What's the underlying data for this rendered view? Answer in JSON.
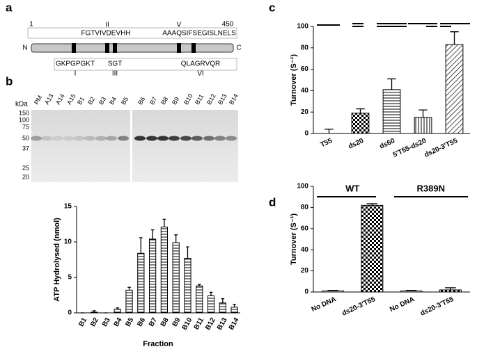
{
  "panels": [
    "a",
    "b",
    "c",
    "d"
  ],
  "domain_diagram": {
    "start": 1,
    "end": 450,
    "n_term": "N",
    "c_term": "C",
    "motifs_above": [
      {
        "numeral": "II",
        "sequence": "FGTVIVDEVHH"
      },
      {
        "numeral": "V",
        "sequence": "AAAQSIFSEGISLNELS"
      }
    ],
    "motifs_below": [
      {
        "numeral": "I",
        "sequence": "GKPGPGKT"
      },
      {
        "numeral": "III",
        "sequence": "SGT"
      },
      {
        "numeral": "VI",
        "sequence": "QLAGRVQR"
      }
    ]
  },
  "gel": {
    "unit": "kDa",
    "lanes": [
      "PM",
      "A13",
      "A14",
      "A15",
      "B1",
      "B2",
      "B3",
      "B4",
      "B5",
      "B6",
      "B7",
      "B8",
      "B9",
      "B10",
      "B11",
      "B12",
      "B13",
      "B14"
    ],
    "markers": [
      150,
      100,
      75,
      50,
      37,
      25,
      20
    ]
  },
  "chart_data": [
    {
      "type": "bar",
      "ylabel": "ATP Hydrolysed (nmol)",
      "xlabel": "Fraction",
      "categories": [
        "B1",
        "B2",
        "B3",
        "B4",
        "B5",
        "B6",
        "B7",
        "B8",
        "B9",
        "B10",
        "B11",
        "B12",
        "B13",
        "B14"
      ],
      "values": [
        0,
        0.1,
        0,
        0.5,
        3.2,
        8.4,
        10.4,
        12.1,
        9.9,
        7.7,
        3.8,
        2.4,
        1.4,
        0.8
      ],
      "errors": [
        0,
        0.2,
        0,
        0.2,
        0.4,
        2.2,
        1.3,
        1.1,
        1.1,
        1.6,
        0.2,
        0.5,
        0.6,
        0.4
      ],
      "patterns": [
        "hlines",
        "hlines",
        "hlines",
        "hlines",
        "hlines",
        "hlines",
        "hlines",
        "hlines",
        "hlines",
        "hlines",
        "hlines",
        "hlines",
        "hlines",
        "hlines"
      ],
      "ylim": [
        0,
        15
      ],
      "yticks": [
        0,
        5,
        10,
        15
      ]
    },
    {
      "type": "bar",
      "ylabel": "Turnover (S⁻¹)",
      "categories": [
        "T55",
        "ds20",
        "ds60",
        "5'T55-ds20",
        "ds20-3'T55"
      ],
      "values": [
        0,
        19,
        41,
        15,
        83
      ],
      "errors": [
        4,
        4,
        10,
        7,
        12
      ],
      "patterns": [
        "none",
        "checker",
        "hlines",
        "vlines",
        "diag"
      ],
      "ylim": [
        0,
        100
      ],
      "yticks": [
        0,
        20,
        40,
        60,
        80,
        100
      ]
    },
    {
      "type": "bar",
      "ylabel": "Turnover (S⁻¹)",
      "groups": [
        "WT",
        "R389N"
      ],
      "categories": [
        "No DNA",
        "ds20-3'T55",
        "No DNA",
        "ds20-3'T55"
      ],
      "values": [
        1,
        82,
        1,
        2
      ],
      "errors": [
        0.5,
        1.5,
        0.5,
        2
      ],
      "patterns": [
        "none",
        "checker",
        "none",
        "checker"
      ],
      "ylim": [
        0,
        100
      ],
      "yticks": [
        0,
        20,
        40,
        60,
        80,
        100
      ]
    }
  ]
}
